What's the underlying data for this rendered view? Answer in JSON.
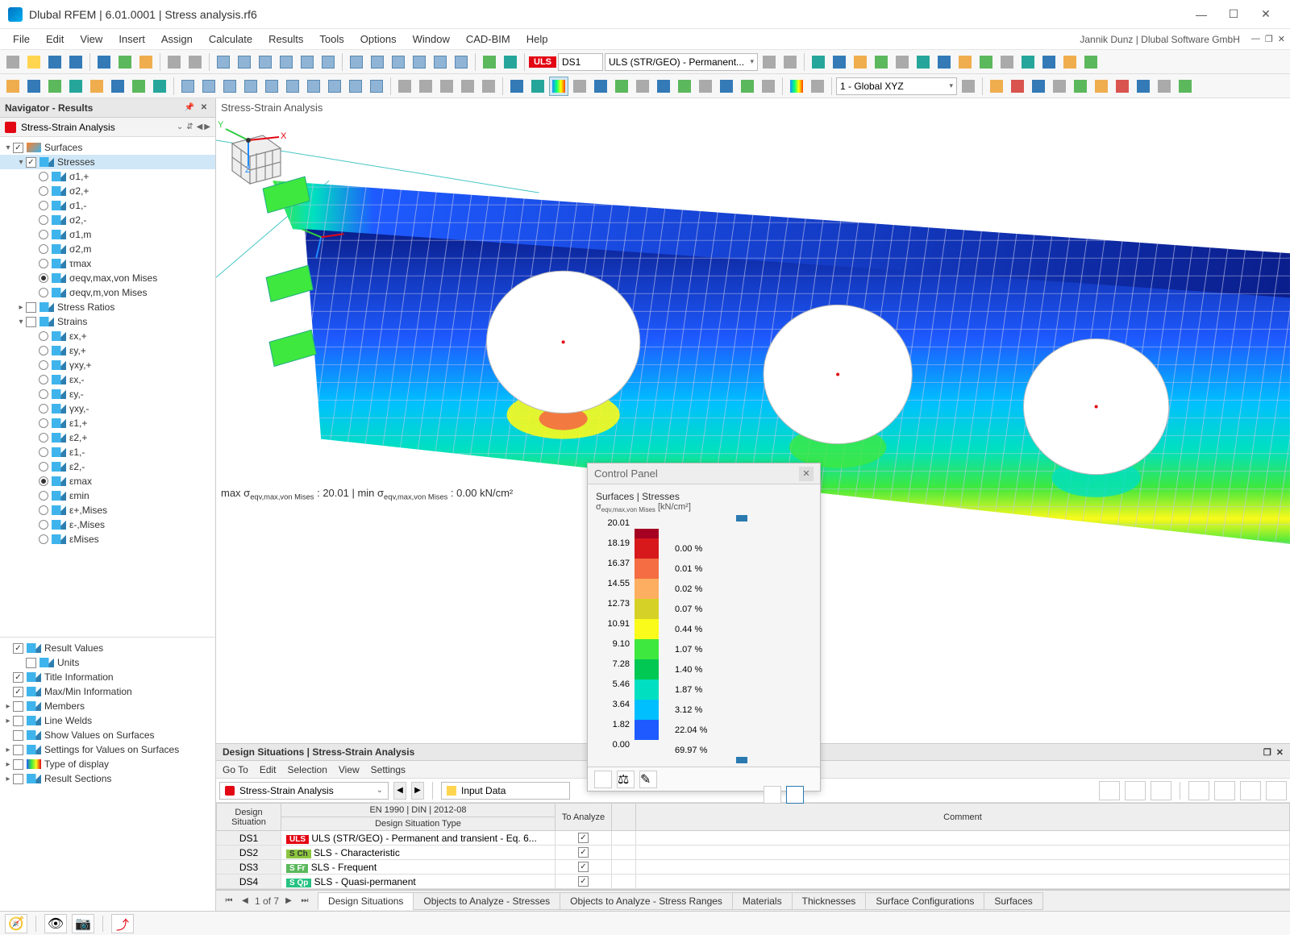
{
  "app": {
    "title": "Dlubal RFEM | 6.01.0001 | Stress analysis.rf6",
    "user": "Jannik Dunz | Dlubal Software GmbH"
  },
  "menu": [
    "File",
    "Edit",
    "View",
    "Insert",
    "Assign",
    "Calculate",
    "Results",
    "Tools",
    "Options",
    "Window",
    "CAD-BIM",
    "Help"
  ],
  "toolbar1": {
    "uls": "ULS",
    "combo_ds": "DS1",
    "combo_case": "ULS (STR/GEO) - Permanent...",
    "cs": "1 - Global XYZ"
  },
  "navigator": {
    "title": "Navigator - Results",
    "sub": "Stress-Strain Analysis",
    "surfaces": "Surfaces",
    "stresses": "Stresses",
    "stress_items": [
      "σ1,+",
      "σ2,+",
      "σ1,-",
      "σ2,-",
      "σ1,m",
      "σ2,m",
      "τmax",
      "σeqv,max,von Mises",
      "σeqv,m,von Mises"
    ],
    "stress_selected": 7,
    "stress_ratios": "Stress Ratios",
    "strains": "Strains",
    "strain_items": [
      "εx,+",
      "εy,+",
      "γxy,+",
      "εx,-",
      "εy,-",
      "γxy,-",
      "ε1,+",
      "ε2,+",
      "ε1,-",
      "ε2,-",
      "εmax",
      "εmin",
      "ε+,Mises",
      "ε-,Mises",
      "εMises"
    ],
    "strain_selected": 10,
    "bottom": [
      {
        "chk": true,
        "label": "Result Values"
      },
      {
        "chk": false,
        "label": "Units",
        "indent": 1
      },
      {
        "chk": true,
        "label": "Title Information"
      },
      {
        "chk": true,
        "label": "Max/Min Information"
      },
      {
        "chk": false,
        "label": "Members",
        "exp": true
      },
      {
        "chk": false,
        "label": "Line Welds",
        "exp": true
      },
      {
        "chk": false,
        "label": "Show Values on Surfaces"
      },
      {
        "chk": false,
        "label": "Settings for Values on Surfaces",
        "exp": true
      },
      {
        "chk": false,
        "label": "Type of display",
        "exp": true,
        "grad": true
      },
      {
        "chk": false,
        "label": "Result Sections",
        "exp": true
      }
    ]
  },
  "viewport": {
    "title": "Stress-Strain Analysis",
    "maxmin_label": "max σeqv,max,von Mises : 20.01 | min σeqv,max,von Mises : 0.00 kN/cm²"
  },
  "control_panel": {
    "title": "Control Panel",
    "sub1": "Surfaces | Stresses",
    "sub2": "σeqv,max,von Mises [kN/cm²]",
    "levels": [
      {
        "v": "20.01",
        "c": "#a50021",
        "p": ""
      },
      {
        "v": "18.19",
        "c": "#d7191c",
        "p": "0.00 %"
      },
      {
        "v": "16.37",
        "c": "#f46d43",
        "p": "0.01 %"
      },
      {
        "v": "14.55",
        "c": "#fdae61",
        "p": "0.02 %"
      },
      {
        "v": "12.73",
        "c": "#d6d126",
        "p": "0.07 %"
      },
      {
        "v": "10.91",
        "c": "#fafa1b",
        "p": "0.44 %"
      },
      {
        "v": "9.10",
        "c": "#3ee83e",
        "p": "1.07 %"
      },
      {
        "v": "7.28",
        "c": "#00c853",
        "p": "1.40 %"
      },
      {
        "v": "5.46",
        "c": "#00e0c0",
        "p": "1.87 %"
      },
      {
        "v": "3.64",
        "c": "#00bfff",
        "p": "3.12 %"
      },
      {
        "v": "1.82",
        "c": "#1e5aff",
        "p": "22.04 %"
      },
      {
        "v": "0.00",
        "c": "#0a1e8c",
        "p": "69.97 %"
      }
    ]
  },
  "lower": {
    "title": "Design Situations | Stress-Strain Analysis",
    "tools": [
      "Go To",
      "Edit",
      "Selection",
      "View",
      "Settings"
    ],
    "combo": "Stress-Strain Analysis",
    "input": "Input Data",
    "th_group": "EN 1990 | DIN | 2012-08",
    "th": [
      "Design Situation",
      "Design Situation Type",
      "To Analyze",
      "",
      "Comment"
    ],
    "rows": [
      {
        "id": "DS1",
        "tag": "ULS",
        "tagc": "uls",
        "type": "ULS (STR/GEO) - Permanent and transient - Eq. 6...",
        "chk": true
      },
      {
        "id": "DS2",
        "tag": "S Ch",
        "tagc": "sch",
        "type": "SLS - Characteristic",
        "chk": true
      },
      {
        "id": "DS3",
        "tag": "S Fr",
        "tagc": "sfr",
        "type": "SLS - Frequent",
        "chk": true
      },
      {
        "id": "DS4",
        "tag": "S Qp",
        "tagc": "sqp",
        "type": "SLS - Quasi-permanent",
        "chk": true
      }
    ]
  },
  "tabs": {
    "pager": "1 of 7",
    "list": [
      "Design Situations",
      "Objects to Analyze - Stresses",
      "Objects to Analyze - Stress Ranges",
      "Materials",
      "Thicknesses",
      "Surface Configurations",
      "Surfaces"
    ],
    "active": 0
  }
}
